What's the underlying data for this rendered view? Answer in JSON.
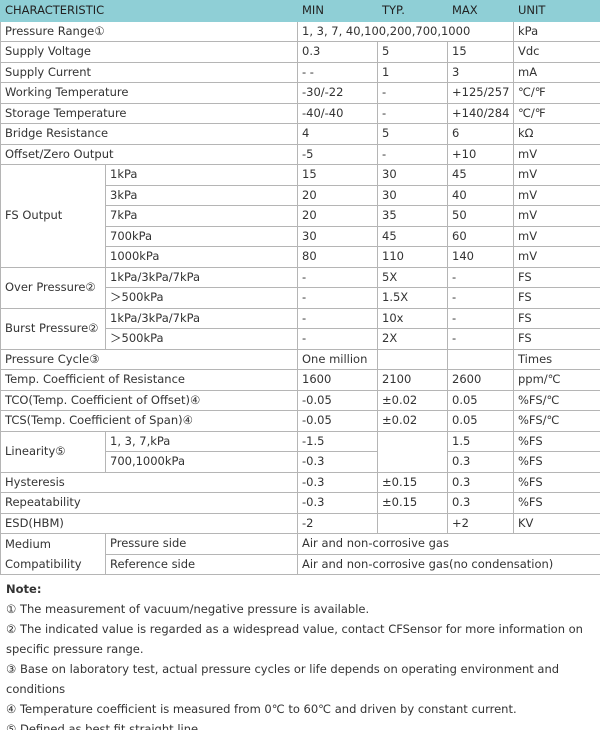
{
  "table": {
    "header": [
      "CHARACTERISTIC",
      "MIN",
      "TYP.",
      "MAX",
      "UNIT"
    ],
    "rows": [
      [
        "Pressure Range①",
        "1, 3, 7, 40,100,200,700,1000",
        "kPa"
      ],
      [
        "Supply Voltage",
        "0.3",
        "5",
        "15",
        "Vdc"
      ],
      [
        "Supply Current",
        "- -",
        "1",
        "3",
        "mA"
      ],
      [
        "Working Temperature",
        "-30/-22",
        "-",
        "+125/257",
        "℃/℉"
      ],
      [
        "Storage Temperature",
        "-40/-40",
        "-",
        "+140/284",
        "℃/℉"
      ],
      [
        "Bridge Resistance",
        "4",
        "5",
        "6",
        "kΩ"
      ],
      [
        "Offset/Zero Output",
        "-5",
        "-",
        "+10",
        "mV"
      ],
      [
        "FS Output",
        "1kPa",
        "15",
        "30",
        "45",
        "mV"
      ],
      [
        "3kPa",
        "20",
        "30",
        "40",
        "mV"
      ],
      [
        "7kPa",
        "20",
        "35",
        "50",
        "mV"
      ],
      [
        "700kPa",
        "30",
        "45",
        "60",
        "mV"
      ],
      [
        "1000kPa",
        "80",
        "110",
        "140",
        "mV"
      ],
      [
        "Over Pressure②",
        "1kPa/3kPa/7kPa",
        "-",
        "5X",
        "-",
        "FS"
      ],
      [
        "＞500kPa",
        "-",
        "1.5X",
        "-",
        "FS"
      ],
      [
        "Burst Pressure②",
        "1kPa/3kPa/7kPa",
        "-",
        "10x",
        "-",
        "FS"
      ],
      [
        "＞500kPa",
        "-",
        "2X",
        "-",
        "FS"
      ],
      [
        "Pressure Cycle③",
        "One million",
        "Times"
      ],
      [
        "Temp. Coefficient of Resistance",
        "1600",
        "2100",
        "2600",
        "ppm/℃"
      ],
      [
        "TCO(Temp. Coefficient of Offset)④",
        "-0.05",
        "±0.02",
        "0.05",
        "%FS/℃"
      ],
      [
        "TCS(Temp. Coefficient of Span)④",
        "-0.05",
        "±0.02",
        "0.05",
        "%FS/℃"
      ],
      [
        "Linearity⑤",
        "1, 3, 7,kPa",
        "-1.5",
        "1.5",
        "%FS"
      ],
      [
        "700,1000kPa",
        "-0.3",
        "0.3",
        "%FS"
      ],
      [
        "Hysteresis",
        "-0.3",
        "±0.15",
        "0.3",
        "%FS"
      ],
      [
        "Repeatability",
        "-0.3",
        "±0.15",
        "0.3",
        "%FS"
      ],
      [
        "ESD(HBM)",
        "-2",
        "+2",
        "KV"
      ],
      [
        "Medium",
        "Compatibility",
        "Pressure side",
        "Air and non-corrosive gas"
      ],
      [
        "Reference side",
        "Air and non-corrosive gas(no condensation)"
      ]
    ]
  },
  "notes": {
    "title": "Note:",
    "items": [
      "① The measurement of vacuum/negative pressure is available.",
      "② The indicated value is regarded as a widespread value, contact CFSensor for more information on specific pressure range.",
      "③ Base on laboratory test, actual pressure cycles or life depends on operating environment and conditions",
      "④ Temperature coefficient is measured from 0℃  to 60℃  and driven by constant current.",
      "⑤ Defined as best fit straight line"
    ]
  }
}
